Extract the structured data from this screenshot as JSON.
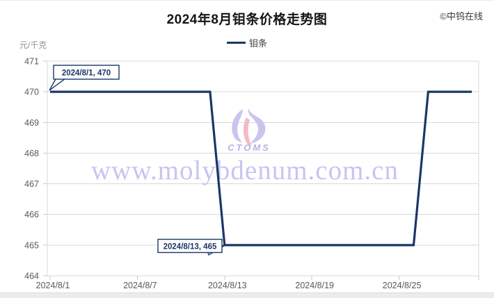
{
  "header": {
    "title": "2024年8月钼条价格走势图",
    "copyright": "©中钨在线"
  },
  "legend": {
    "series_label": "钼条"
  },
  "y_axis": {
    "unit": "元/千克",
    "ticks": [
      471,
      470,
      469,
      468,
      467,
      466,
      465,
      464
    ]
  },
  "x_axis": {
    "ticks": [
      {
        "label": "2024/8/1",
        "day": 1
      },
      {
        "label": "2024/8/7",
        "day": 7
      },
      {
        "label": "2024/8/13",
        "day": 13
      },
      {
        "label": "2024/8/19",
        "day": 19
      },
      {
        "label": "2024/8/25",
        "day": 25
      },
      {
        "label": "",
        "day": 30.5
      }
    ]
  },
  "annotations": [
    {
      "text": "2024/8/1, 470"
    },
    {
      "text": "2024/8/13, 465"
    }
  ],
  "watermark": {
    "site": "www.molybdenum.com.cn",
    "logo_text": "CTOMS"
  },
  "colors": {
    "line": "#1b3667",
    "grid": "#d9d9d9",
    "tick": "#c9c9c9",
    "tick_label": "#595959",
    "watermark_text": "#c7c5f1",
    "logo_lavender": "#c9c5ef",
    "logo_pink": "#f5b9c3"
  },
  "chart_data": {
    "type": "line",
    "title": "2024年8月钼条价格走势图",
    "xlabel": "",
    "ylabel": "元/千克",
    "ylim": [
      464,
      471
    ],
    "grid": "horizontal",
    "legend_position": "top",
    "x_tick_labels": [
      "2024/8/1",
      "2024/8/7",
      "2024/8/13",
      "2024/8/19",
      "2024/8/25"
    ],
    "series": [
      {
        "name": "钼条",
        "x": [
          1,
          2,
          3,
          4,
          5,
          6,
          7,
          8,
          9,
          10,
          11,
          12,
          13,
          14,
          15,
          16,
          17,
          18,
          19,
          20,
          21,
          22,
          23,
          24,
          25,
          26,
          27,
          28,
          29,
          30
        ],
        "values": [
          470,
          470,
          470,
          470,
          470,
          470,
          470,
          470,
          470,
          470,
          470,
          470,
          465,
          465,
          465,
          465,
          465,
          465,
          465,
          465,
          465,
          465,
          465,
          465,
          465,
          465,
          470,
          470,
          470,
          470
        ]
      }
    ],
    "annotations": [
      "2024/8/1, 470",
      "2024/8/13, 465"
    ]
  }
}
